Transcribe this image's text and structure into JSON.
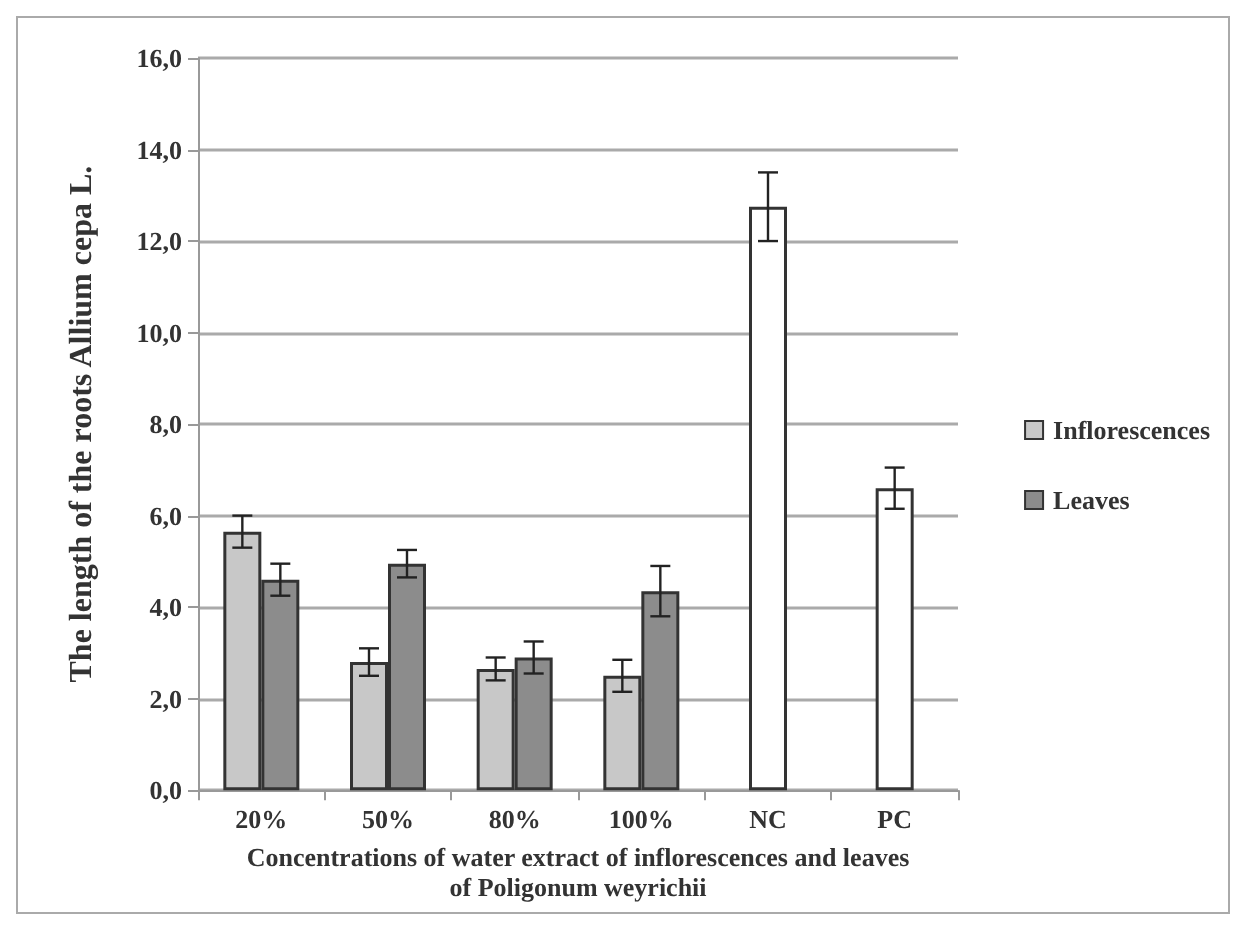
{
  "chart_data": {
    "type": "bar",
    "xlabel": "Concentrations of water extract of inflorescences and leaves\nof Poligonum weyrichii",
    "ylabel": "The length of the roots Allium cepa L.",
    "categories": [
      "20%",
      "50%",
      "80%",
      "100%",
      "NC",
      "PC"
    ],
    "series": [
      {
        "name": "Inflorescences",
        "color": "#c8c8c8",
        "values": [
          5.65,
          2.8,
          2.65,
          2.5,
          null,
          null
        ],
        "errors": [
          0.35,
          0.3,
          0.25,
          0.35,
          null,
          null
        ]
      },
      {
        "name": "Leaves",
        "color": "#8c8c8c",
        "values": [
          4.6,
          4.95,
          2.9,
          4.35,
          null,
          null
        ],
        "errors": [
          0.35,
          0.3,
          0.35,
          0.55,
          null,
          null
        ]
      },
      {
        "color": "#ffffff",
        "values": [
          null,
          null,
          null,
          null,
          12.75,
          6.6
        ],
        "errors": [
          null,
          null,
          null,
          null,
          0.75,
          0.45
        ]
      }
    ],
    "ylim": [
      0,
      16
    ],
    "yticks": [
      {
        "value": 0,
        "label": "0,0"
      },
      {
        "value": 2,
        "label": "2,0"
      },
      {
        "value": 4,
        "label": "4,0"
      },
      {
        "value": 6,
        "label": "6,0"
      },
      {
        "value": 8,
        "label": "8,0"
      },
      {
        "value": 10,
        "label": "10,0"
      },
      {
        "value": 12,
        "label": "12,0"
      },
      {
        "value": 14,
        "label": "14,0"
      },
      {
        "value": 16,
        "label": "16,0"
      }
    ],
    "grid": "y",
    "legend": "right"
  }
}
